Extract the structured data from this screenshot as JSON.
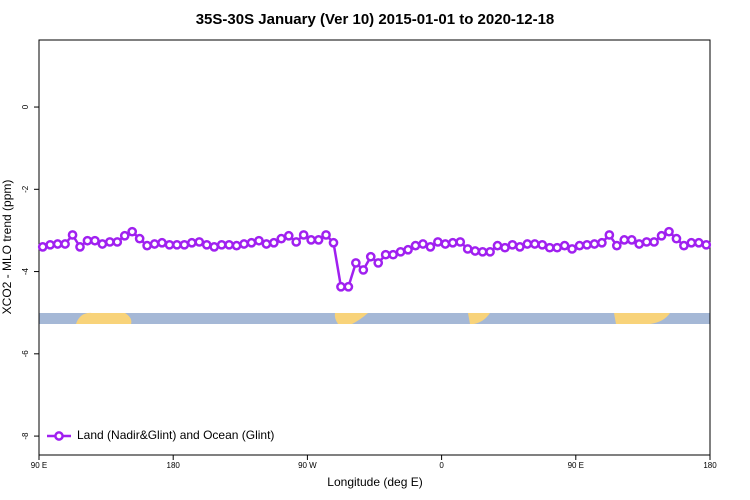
{
  "chart_data": {
    "type": "line",
    "title": "35S-30S January (Ver 10)   2015-01-01 to 2020-12-18",
    "x_label": "Longitude (deg E)",
    "y_label": "XCO2 - MLO trend (ppm)",
    "xlim": [
      90,
      540
    ],
    "ylim": [
      -8.46,
      1.63
    ],
    "xticks": [
      {
        "value": 90,
        "label": "90 E"
      },
      {
        "value": 180,
        "label": "180"
      },
      {
        "value": 270,
        "label": "90 W"
      },
      {
        "value": 360,
        "label": "0"
      },
      {
        "value": 450,
        "label": "90 E"
      },
      {
        "value": 540,
        "label": "180"
      }
    ],
    "yticks": [
      0,
      -2,
      -4,
      -6,
      -8
    ],
    "legend": "bottom-left",
    "x": [
      92.5,
      97.5,
      102.5,
      107.5,
      112.5,
      117.5,
      122.5,
      127.5,
      132.5,
      137.5,
      142.5,
      147.5,
      152.5,
      157.5,
      162.5,
      167.5,
      172.5,
      177.5,
      182.5,
      187.5,
      192.5,
      197.5,
      202.5,
      207.5,
      212.5,
      217.5,
      222.5,
      227.5,
      232.5,
      237.5,
      242.5,
      247.5,
      252.5,
      257.5,
      262.5,
      267.5,
      272.5,
      277.5,
      282.5,
      287.5,
      292.5,
      297.5,
      302.5,
      307.5,
      312.5,
      317.5,
      322.5,
      327.5,
      332.5,
      337.5,
      342.5,
      347.5,
      352.5,
      357.5,
      362.5,
      367.5,
      372.5,
      377.5,
      382.5,
      387.5,
      392.5,
      397.5,
      402.5,
      407.5,
      412.5,
      417.5,
      422.5,
      427.5,
      432.5,
      437.5,
      442.5,
      447.5,
      452.5,
      457.5,
      462.5,
      467.5,
      472.5,
      477.5,
      482.5,
      487.5,
      492.5,
      497.5,
      502.5,
      507.5,
      512.5,
      517.5,
      522.5,
      527.5,
      532.5,
      537.5
    ],
    "series": [
      {
        "name": "Land (Nadir&Glint) and Ocean (Glint)",
        "color": "#a020f0",
        "values": [
          -3.4,
          -3.35,
          -3.33,
          -3.33,
          -3.11,
          -3.4,
          -3.25,
          -3.25,
          -3.33,
          -3.28,
          -3.28,
          -3.13,
          -3.03,
          -3.2,
          -3.37,
          -3.33,
          -3.3,
          -3.35,
          -3.35,
          -3.35,
          -3.3,
          -3.28,
          -3.35,
          -3.4,
          -3.35,
          -3.35,
          -3.37,
          -3.33,
          -3.3,
          -3.25,
          -3.33,
          -3.3,
          -3.2,
          -3.13,
          -3.28,
          -3.11,
          -3.23,
          -3.23,
          -3.11,
          -3.3,
          -4.37,
          -4.37,
          -3.79,
          -3.96,
          -3.64,
          -3.79,
          -3.59,
          -3.59,
          -3.52,
          -3.47,
          -3.37,
          -3.33,
          -3.4,
          -3.28,
          -3.33,
          -3.3,
          -3.28,
          -3.45,
          -3.5,
          -3.52,
          -3.52,
          -3.37,
          -3.42,
          -3.35,
          -3.4,
          -3.33,
          -3.33,
          -3.35,
          -3.42,
          -3.42,
          -3.37,
          -3.45,
          -3.37,
          -3.35,
          -3.33,
          -3.3,
          -3.11,
          -3.37,
          -3.23,
          -3.23,
          -3.33,
          -3.28,
          -3.28,
          -3.13,
          -3.03,
          -3.2,
          -3.37,
          -3.3,
          -3.3,
          -3.35
        ]
      }
    ]
  }
}
